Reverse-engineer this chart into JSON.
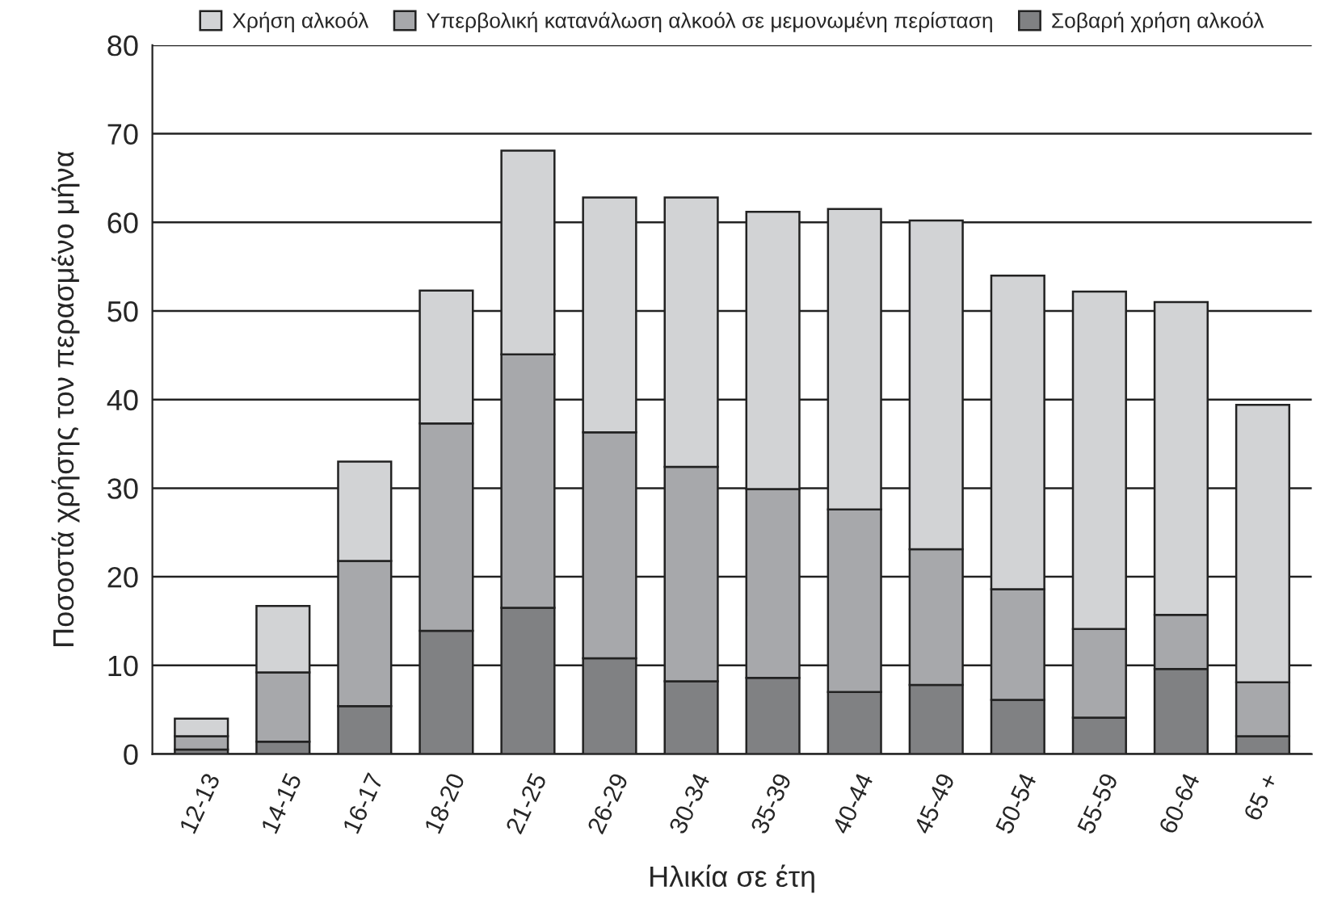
{
  "chart_data": {
    "type": "bar",
    "stacked": true,
    "xlabel": "Ηλικία σε έτη",
    "ylabel": "Ποσοστά χρήσης τον περασμένο μήνα",
    "categories": [
      "12-13",
      "14-15",
      "16-17",
      "18-20",
      "21-25",
      "26-29",
      "30-34",
      "35-39",
      "40-44",
      "45-49",
      "50-54",
      "55-59",
      "60-64",
      "65 +"
    ],
    "series": [
      {
        "name": "Σοβαρή χρήση αλκοόλ",
        "color": "#808183",
        "values": [
          0.5,
          1.4,
          5.4,
          13.9,
          16.5,
          10.8,
          8.2,
          8.6,
          7.0,
          7.8,
          6.1,
          4.1,
          9.6,
          2.0
        ]
      },
      {
        "name": "Υπερβολική κατανάλωση αλκοόλ σε μεμονωμένη περίσταση",
        "color": "#a7a8ab",
        "values": [
          1.5,
          7.8,
          16.4,
          23.4,
          28.6,
          25.5,
          24.2,
          21.3,
          20.6,
          15.3,
          12.5,
          10.0,
          6.1,
          6.1
        ]
      },
      {
        "name": "Χρήση αλκοόλ",
        "color": "#d2d3d5",
        "values": [
          2.0,
          7.5,
          11.2,
          15.0,
          23.0,
          26.5,
          30.4,
          31.3,
          33.9,
          37.1,
          35.4,
          38.1,
          35.3,
          31.3
        ]
      }
    ],
    "ylim": [
      0,
      80
    ],
    "yticks": [
      0,
      10,
      20,
      30,
      40,
      50,
      60,
      70,
      80
    ],
    "grid": "y",
    "legend": "top"
  }
}
